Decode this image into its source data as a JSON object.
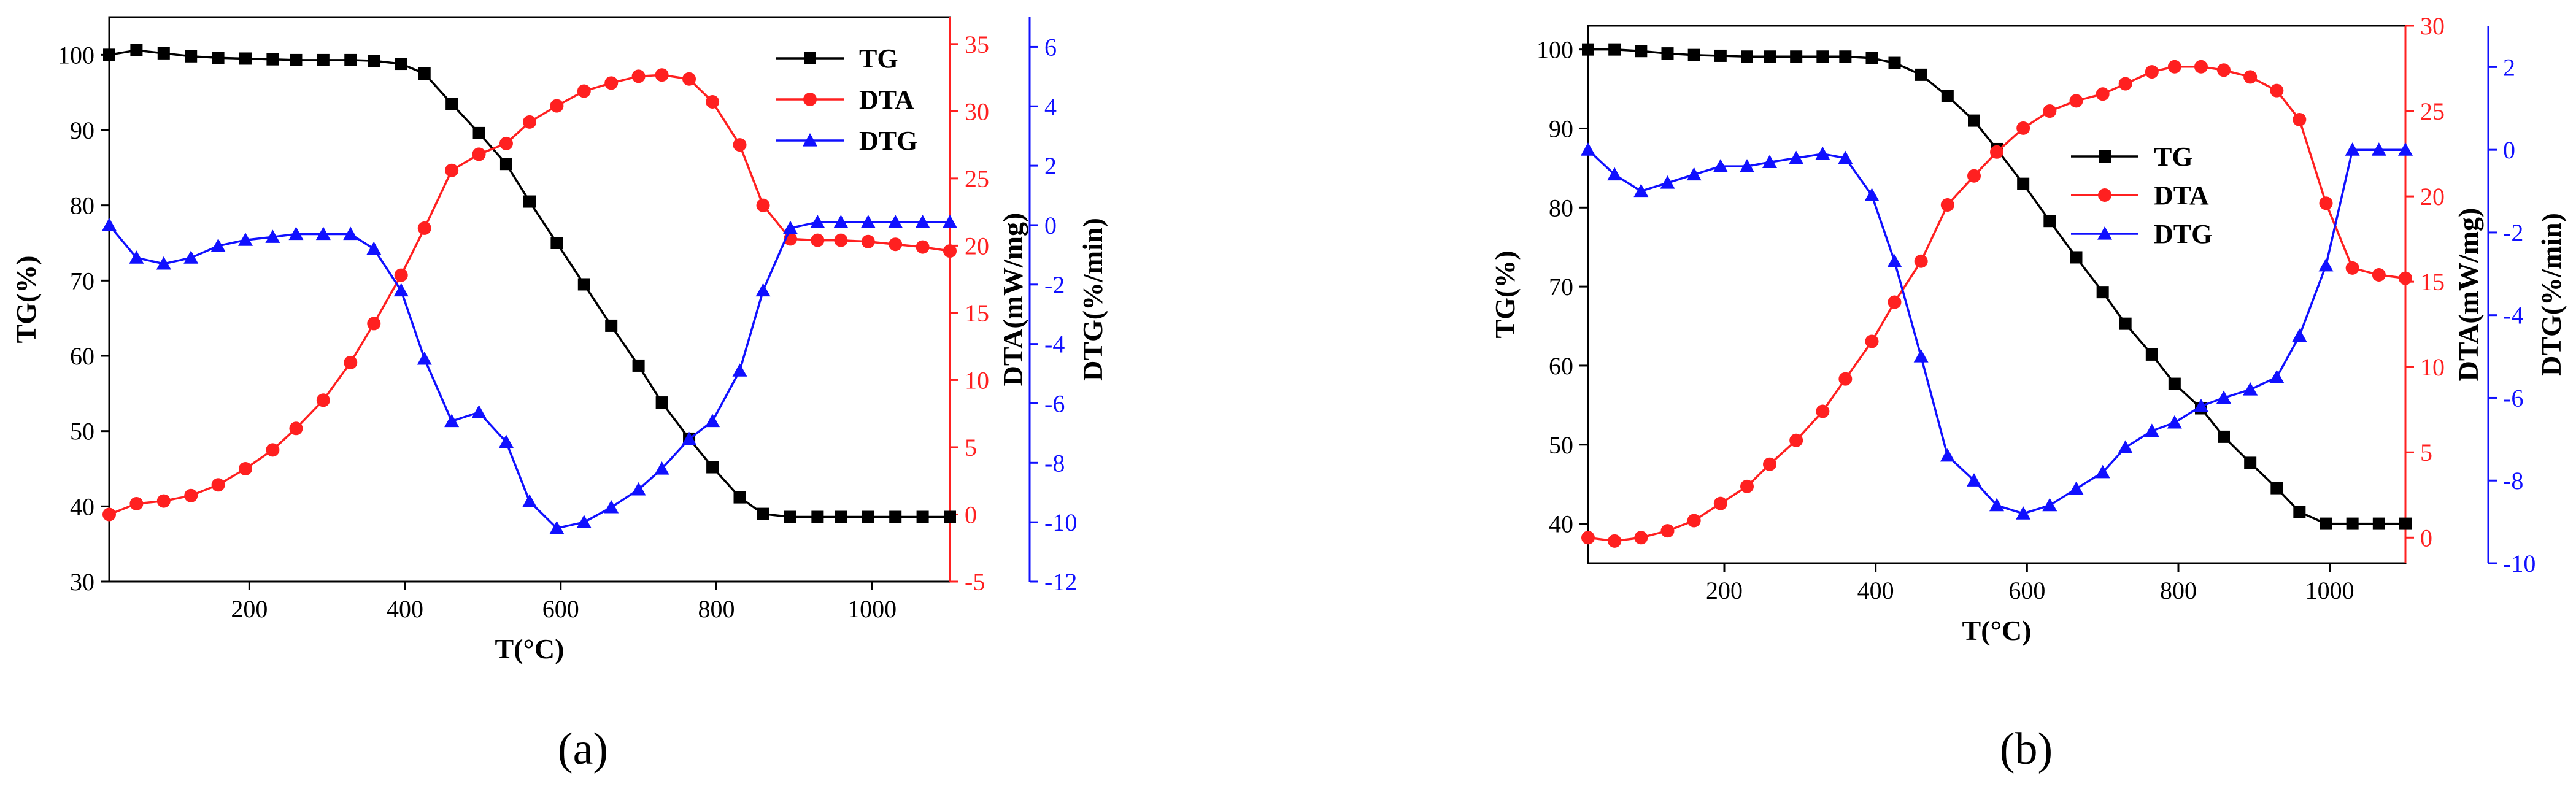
{
  "chart_data": [
    {
      "id": "a",
      "panel_label": "(a)",
      "type": "line",
      "xlabel": "T(°C)",
      "xlim": [
        20,
        1100
      ],
      "xticks": [
        200,
        400,
        600,
        800,
        1000
      ],
      "left_axis": {
        "label": "TG(%)",
        "lim": [
          30,
          105
        ],
        "ticks": [
          30,
          40,
          50,
          60,
          70,
          80,
          90,
          100
        ],
        "color": "#000000"
      },
      "right_axes": [
        {
          "label": "DTA(mW/mg)",
          "lim": [
            -5,
            37
          ],
          "ticks": [
            -5,
            0,
            5,
            10,
            15,
            20,
            25,
            30,
            35
          ],
          "color": "#ff2020"
        },
        {
          "label": "DTG(%/min)",
          "lim": [
            -12,
            7
          ],
          "ticks": [
            -12,
            -10,
            -8,
            -6,
            -4,
            -2,
            0,
            2,
            4,
            6
          ],
          "color": "#1010ff"
        }
      ],
      "legend": {
        "position": "top-right",
        "entries": [
          "TG",
          "DTA",
          "DTG"
        ]
      },
      "series": [
        {
          "name": "TG",
          "axis": "left",
          "color": "#000000",
          "marker": "square",
          "x": [
            20,
            55,
            90,
            125,
            160,
            195,
            230,
            260,
            295,
            330,
            360,
            395,
            425,
            460,
            495,
            530,
            560,
            595,
            630,
            665,
            700,
            730,
            765,
            795,
            830,
            860,
            895,
            930,
            960,
            995,
            1030,
            1065,
            1100
          ],
          "y": [
            100,
            100.6,
            100.2,
            99.8,
            99.6,
            99.5,
            99.4,
            99.3,
            99.3,
            99.3,
            99.2,
            98.8,
            97.5,
            93.5,
            89.6,
            85.5,
            80.5,
            75,
            69.5,
            64,
            58.7,
            53.8,
            49,
            45.2,
            41.2,
            39,
            38.6,
            38.6,
            38.6,
            38.6,
            38.6,
            38.6,
            38.6
          ]
        },
        {
          "name": "DTA",
          "axis": "right1",
          "color": "#ff2020",
          "marker": "circle",
          "x": [
            20,
            55,
            90,
            125,
            160,
            195,
            230,
            260,
            295,
            330,
            360,
            395,
            425,
            460,
            495,
            530,
            560,
            595,
            630,
            665,
            700,
            730,
            765,
            795,
            830,
            860,
            895,
            930,
            960,
            995,
            1030,
            1065,
            1100
          ],
          "y": [
            0,
            0.8,
            1,
            1.4,
            2.2,
            3.4,
            4.8,
            6.4,
            8.5,
            11.3,
            14.2,
            17.8,
            21.3,
            25.6,
            26.8,
            27.6,
            29.2,
            30.4,
            31.5,
            32.1,
            32.6,
            32.7,
            32.4,
            30.7,
            27.5,
            23,
            20.5,
            20.4,
            20.4,
            20.3,
            20.1,
            19.9,
            19.6
          ]
        },
        {
          "name": "DTG",
          "axis": "right2",
          "color": "#1010ff",
          "marker": "triangle",
          "x": [
            20,
            55,
            90,
            125,
            160,
            195,
            230,
            260,
            295,
            330,
            360,
            395,
            425,
            460,
            495,
            530,
            560,
            595,
            630,
            665,
            700,
            730,
            765,
            795,
            830,
            860,
            895,
            930,
            960,
            995,
            1030,
            1065,
            1100
          ],
          "y": [
            0,
            -1.1,
            -1.3,
            -1.1,
            -0.7,
            -0.5,
            -0.4,
            -0.3,
            -0.3,
            -0.3,
            -0.8,
            -2.2,
            -4.5,
            -6.6,
            -6.3,
            -7.3,
            -9.3,
            -10.2,
            -10,
            -9.5,
            -8.9,
            -8.2,
            -7.2,
            -6.6,
            -4.9,
            -2.2,
            -0.1,
            0.1,
            0.1,
            0.1,
            0.1,
            0.1,
            0.1
          ]
        }
      ]
    },
    {
      "id": "b",
      "panel_label": "(b)",
      "type": "line",
      "xlabel": "T(°C)",
      "xlim": [
        20,
        1100
      ],
      "xticks": [
        200,
        400,
        600,
        800,
        1000
      ],
      "left_axis": {
        "label": "TG(%)",
        "lim": [
          35,
          103
        ],
        "ticks": [
          40,
          50,
          60,
          70,
          80,
          90,
          100
        ],
        "color": "#000000"
      },
      "right_axes": [
        {
          "label": "DTA(mW/mg)",
          "lim": [
            -1.5,
            30
          ],
          "ticks": [
            0,
            5,
            10,
            15,
            20,
            25,
            30
          ],
          "color": "#ff2020"
        },
        {
          "label": "DTG(%/min)",
          "lim": [
            -10,
            3
          ],
          "ticks": [
            -10,
            -8,
            -6,
            -4,
            -2,
            0,
            2
          ],
          "color": "#1010ff"
        }
      ],
      "legend": {
        "position": "center",
        "entries": [
          "TG",
          "DTA",
          "DTG"
        ]
      },
      "series": [
        {
          "name": "TG",
          "axis": "left",
          "color": "#000000",
          "marker": "square",
          "x": [
            20,
            55,
            90,
            125,
            160,
            195,
            230,
            260,
            295,
            330,
            360,
            395,
            425,
            460,
            495,
            530,
            560,
            595,
            630,
            665,
            700,
            730,
            765,
            795,
            830,
            860,
            895,
            930,
            960,
            995,
            1030,
            1065,
            1100
          ],
          "y": [
            100,
            100,
            99.8,
            99.5,
            99.3,
            99.2,
            99.1,
            99.1,
            99.1,
            99.1,
            99.1,
            98.9,
            98.3,
            96.8,
            94.1,
            91,
            87.4,
            83,
            78.3,
            73.7,
            69.3,
            65.3,
            61.4,
            57.7,
            54.6,
            51,
            47.7,
            44.5,
            41.5,
            40,
            40,
            40,
            40
          ]
        },
        {
          "name": "DTA",
          "axis": "right1",
          "color": "#ff2020",
          "marker": "circle",
          "x": [
            20,
            55,
            90,
            125,
            160,
            195,
            230,
            260,
            295,
            330,
            360,
            395,
            425,
            460,
            495,
            530,
            560,
            595,
            630,
            665,
            700,
            730,
            765,
            795,
            830,
            860,
            895,
            930,
            960,
            995,
            1030,
            1065,
            1100
          ],
          "y": [
            0,
            -0.2,
            0,
            0.4,
            1,
            2,
            3,
            4.3,
            5.7,
            7.4,
            9.3,
            11.5,
            13.8,
            16.2,
            19.5,
            21.2,
            22.6,
            24,
            25,
            25.6,
            26,
            26.6,
            27.3,
            27.6,
            27.6,
            27.4,
            27,
            26.2,
            24.5,
            19.6,
            15.8,
            15.4,
            15.2
          ]
        },
        {
          "name": "DTG",
          "axis": "right2",
          "color": "#1010ff",
          "marker": "triangle",
          "x": [
            20,
            55,
            90,
            125,
            160,
            195,
            230,
            260,
            295,
            330,
            360,
            395,
            425,
            460,
            495,
            530,
            560,
            595,
            630,
            665,
            700,
            730,
            765,
            795,
            830,
            860,
            895,
            930,
            960,
            995,
            1030,
            1065,
            1100
          ],
          "y": [
            0,
            -0.6,
            -1,
            -0.8,
            -0.6,
            -0.4,
            -0.4,
            -0.3,
            -0.2,
            -0.1,
            -0.2,
            -1.1,
            -2.7,
            -5,
            -7.4,
            -8,
            -8.6,
            -8.8,
            -8.6,
            -8.2,
            -7.8,
            -7.2,
            -6.8,
            -6.6,
            -6.2,
            -6,
            -5.8,
            -5.5,
            -4.5,
            -2.8,
            0,
            0,
            0
          ]
        }
      ]
    }
  ]
}
